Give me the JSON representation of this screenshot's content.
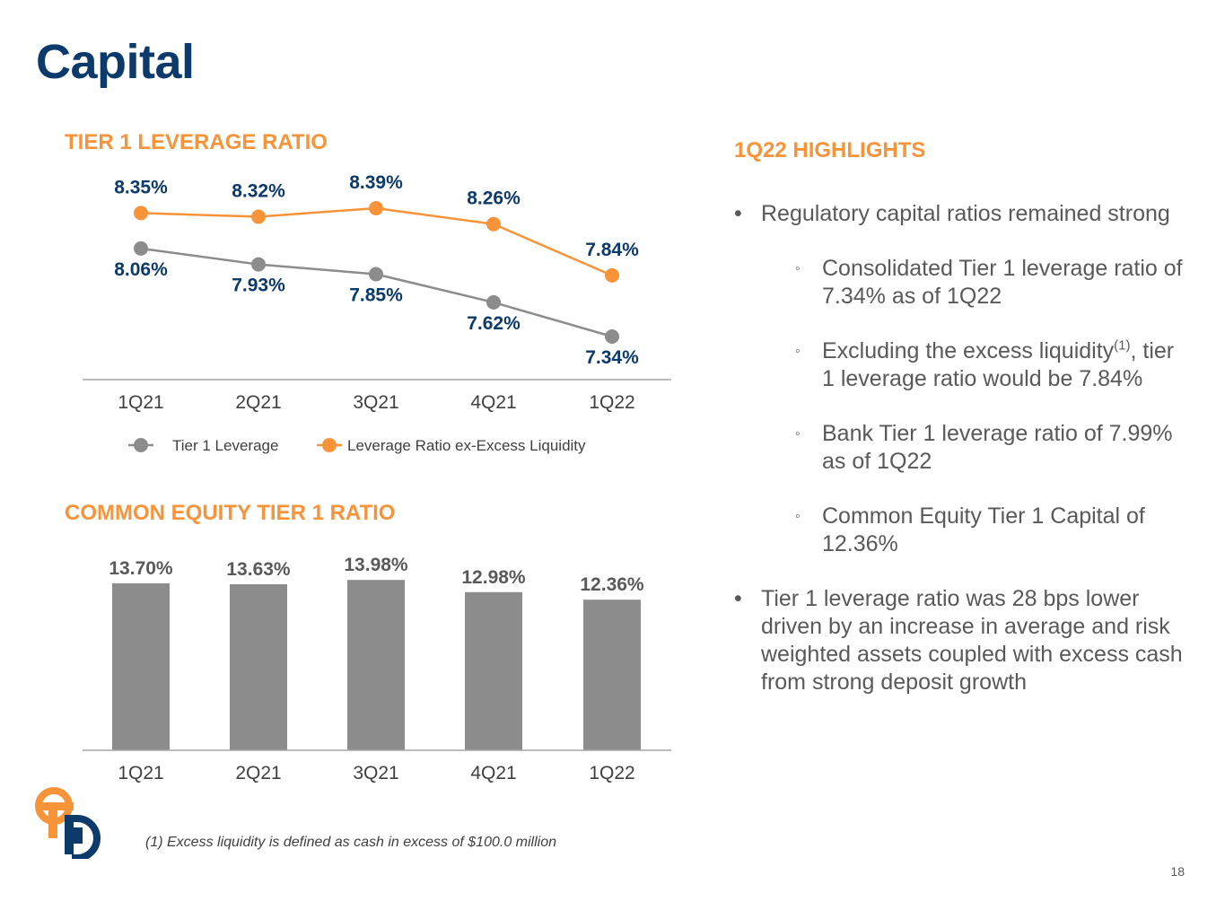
{
  "page": {
    "title": "Capital",
    "page_number": "18",
    "footnote": "(1) Excess liquidity is defined as cash in excess of $100.0 million"
  },
  "colors": {
    "navy": "#0c3a6b",
    "orange": "#f7943a",
    "gray": "#8c8c8c"
  },
  "chart_data": [
    {
      "type": "line",
      "title": "TIER 1 LEVERAGE RATIO",
      "categories": [
        "1Q21",
        "2Q21",
        "3Q21",
        "4Q21",
        "1Q22"
      ],
      "series": [
        {
          "name": "Tier 1 Leverage",
          "values": [
            8.06,
            7.93,
            7.85,
            7.62,
            7.34
          ],
          "labels": [
            "8.06%",
            "7.93%",
            "7.85%",
            "7.62%",
            "7.34%"
          ],
          "color": "#8c8c8c"
        },
        {
          "name": "Leverage Ratio ex-Excess Liquidity",
          "values": [
            8.35,
            8.32,
            8.39,
            8.26,
            7.84
          ],
          "labels": [
            "8.35%",
            "8.32%",
            "8.39%",
            "8.26%",
            "7.84%"
          ],
          "color": "#f7943a"
        }
      ],
      "legend": "bottom",
      "grid": false
    },
    {
      "type": "bar",
      "title": "COMMON EQUITY TIER 1 RATIO",
      "categories": [
        "1Q21",
        "2Q21",
        "3Q21",
        "4Q21",
        "1Q22"
      ],
      "values": [
        13.7,
        13.63,
        13.98,
        12.98,
        12.36
      ],
      "labels": [
        "13.70%",
        "13.63%",
        "13.98%",
        "12.98%",
        "12.36%"
      ],
      "color": "#8c8c8c",
      "grid": false
    }
  ],
  "highlights": {
    "title": "1Q22 HIGHLIGHTS",
    "b1": "Regulatory capital ratios remained strong",
    "s1": "Consolidated Tier 1 leverage ratio of 7.34% as of 1Q22",
    "s2_a": "Excluding the excess liquidity",
    "s2_sup": "(1)",
    "s2_b": ", tier 1 leverage ratio would be 7.84%",
    "s3": "Bank Tier 1 leverage ratio of 7.99% as of 1Q22",
    "s4": "Common Equity Tier 1 Capital of 12.36%",
    "b2": "Tier 1 leverage ratio was 28 bps lower driven by an increase in average and risk weighted assets coupled with excess cash from strong deposit growth",
    "bullet_mark": "•",
    "sub_mark": "◦"
  }
}
